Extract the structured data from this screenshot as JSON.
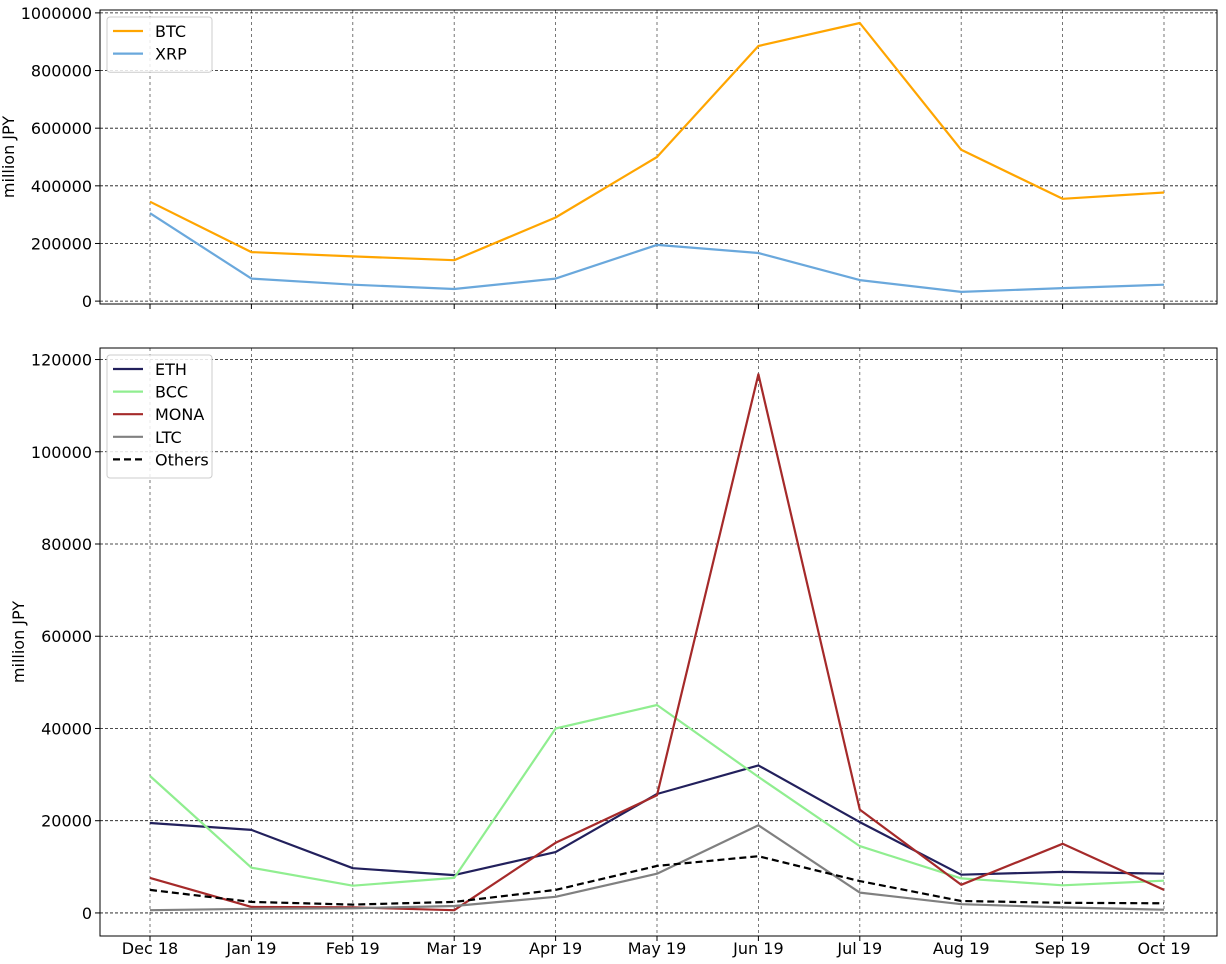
{
  "chart_data": [
    {
      "type": "line",
      "x": [
        "Dec 18",
        "Jan 19",
        "Feb 19",
        "Mar 19",
        "Apr 19",
        "May 19",
        "Jun 19",
        "Jul 19",
        "Aug 19",
        "Sep 19",
        "Oct 19"
      ],
      "ylabel": "million JPY",
      "ylim": [
        -10000,
        1010000
      ],
      "yticks": [
        0,
        200000,
        400000,
        600000,
        800000,
        1000000
      ],
      "grid": true,
      "legend": "top-left",
      "series": [
        {
          "name": "BTC",
          "color": "#ffa500",
          "dashed": false,
          "values": [
            345000,
            170000,
            155000,
            142000,
            290000,
            500000,
            885000,
            965000,
            525000,
            355000,
            377000
          ]
        },
        {
          "name": "XRP",
          "color": "#6aa8dc",
          "dashed": false,
          "values": [
            305000,
            78000,
            57000,
            42000,
            78000,
            195000,
            167000,
            73000,
            32000,
            45000,
            57000
          ]
        }
      ]
    },
    {
      "type": "line",
      "x": [
        "Dec 18",
        "Jan 19",
        "Feb 19",
        "Mar 19",
        "Apr 19",
        "May 19",
        "Jun 19",
        "Jul 19",
        "Aug 19",
        "Sep 19",
        "Oct 19"
      ],
      "ylabel": "million JPY",
      "ylim": [
        -5000,
        122500
      ],
      "yticks": [
        0,
        20000,
        40000,
        60000,
        80000,
        100000,
        120000
      ],
      "grid": true,
      "legend": "top-left",
      "series": [
        {
          "name": "ETH",
          "color": "#22205c",
          "dashed": false,
          "values": [
            19500,
            18000,
            9700,
            8200,
            13200,
            25800,
            32000,
            19700,
            8300,
            8900,
            8500
          ]
        },
        {
          "name": "BCC",
          "color": "#90ee90",
          "dashed": false,
          "values": [
            29700,
            9800,
            5900,
            7600,
            40000,
            45100,
            29500,
            14500,
            7500,
            6000,
            7000
          ]
        },
        {
          "name": "MONA",
          "color": "#a52a2a",
          "dashed": false,
          "values": [
            7600,
            1300,
            1200,
            600,
            15200,
            25500,
            116800,
            22400,
            6100,
            15000,
            5000
          ]
        },
        {
          "name": "LTC",
          "color": "#808080",
          "dashed": false,
          "values": [
            600,
            900,
            1000,
            1500,
            3500,
            8500,
            19000,
            4400,
            1900,
            1200,
            700
          ]
        },
        {
          "name": "Others",
          "color": "#000000",
          "dashed": true,
          "values": [
            5000,
            2400,
            1800,
            2400,
            5000,
            10200,
            12300,
            6900,
            2600,
            2200,
            2100
          ]
        }
      ]
    }
  ]
}
